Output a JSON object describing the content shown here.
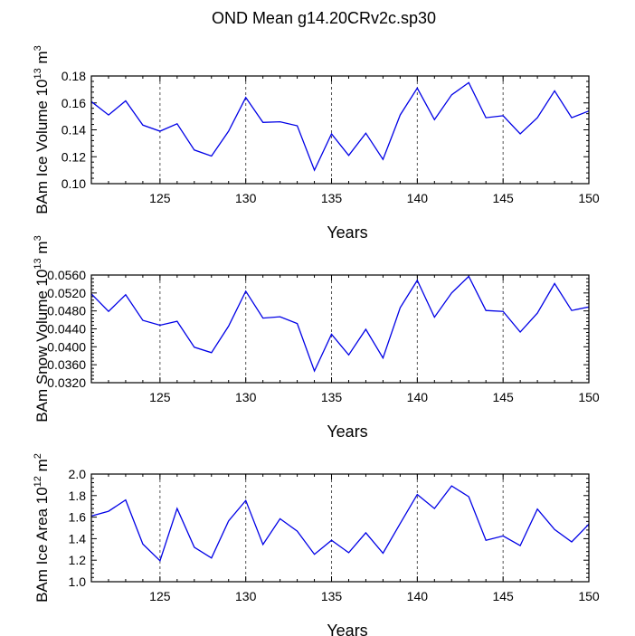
{
  "page_title": "OND Mean g14.20CRv2c.sp30",
  "colors": {
    "line": "#0000e6",
    "grid": "#555555",
    "axis": "#000000"
  },
  "chart_data": [
    {
      "type": "line",
      "ylabel": "BAm Ice Volume 10",
      "ylabel_exp": "13",
      "ylabel_unit": " m",
      "ylabel_unit_exp": "3",
      "xlabel": "Years",
      "xlim": [
        121,
        150
      ],
      "ylim": [
        0.1,
        0.18
      ],
      "yticks": [
        "0.10",
        "0.12",
        "0.14",
        "0.16",
        "0.18"
      ],
      "xticks": [
        "125",
        "130",
        "135",
        "140",
        "145",
        "150"
      ],
      "x": [
        121,
        122,
        123,
        124,
        125,
        126,
        127,
        128,
        129,
        130,
        131,
        132,
        133,
        134,
        135,
        136,
        137,
        138,
        139,
        140,
        141,
        142,
        143,
        144,
        145,
        146,
        147,
        148,
        149,
        150
      ],
      "values": [
        0.161,
        0.151,
        0.1615,
        0.1435,
        0.139,
        0.1445,
        0.125,
        0.1205,
        0.139,
        0.164,
        0.1455,
        0.146,
        0.143,
        0.11,
        0.137,
        0.121,
        0.1375,
        0.118,
        0.151,
        0.171,
        0.1475,
        0.166,
        0.175,
        0.149,
        0.1505,
        0.137,
        0.149,
        0.169,
        0.149,
        0.154
      ]
    },
    {
      "type": "line",
      "ylabel": "BAm Snow Volume 10",
      "ylabel_exp": "13",
      "ylabel_unit": " m",
      "ylabel_unit_exp": "3",
      "xlabel": "Years",
      "xlim": [
        121,
        150
      ],
      "ylim": [
        0.032,
        0.056
      ],
      "yticks": [
        "0.0320",
        "0.0360",
        "0.0400",
        "0.0440",
        "0.0480",
        "0.0520",
        "0.0560"
      ],
      "xticks": [
        "125",
        "130",
        "135",
        "140",
        "145",
        "150"
      ],
      "x": [
        121,
        122,
        123,
        124,
        125,
        126,
        127,
        128,
        129,
        130,
        131,
        132,
        133,
        134,
        135,
        136,
        137,
        138,
        139,
        140,
        141,
        142,
        143,
        144,
        145,
        146,
        147,
        148,
        149,
        150
      ],
      "values": [
        0.0518,
        0.0479,
        0.0516,
        0.0459,
        0.0448,
        0.0457,
        0.0399,
        0.0387,
        0.0446,
        0.0524,
        0.0464,
        0.0467,
        0.0452,
        0.0346,
        0.0428,
        0.0382,
        0.0439,
        0.0375,
        0.0487,
        0.0548,
        0.0466,
        0.052,
        0.0557,
        0.0481,
        0.0479,
        0.0433,
        0.0475,
        0.0541,
        0.0481,
        0.0489
      ]
    },
    {
      "type": "line",
      "ylabel": "BAm Ice Area 10",
      "ylabel_exp": "12",
      "ylabel_unit": " m",
      "ylabel_unit_exp": "2",
      "xlabel": "Years",
      "xlim": [
        121,
        150
      ],
      "ylim": [
        1.0,
        2.0
      ],
      "yticks": [
        "1.0",
        "1.2",
        "1.4",
        "1.6",
        "1.8",
        "2.0"
      ],
      "xticks": [
        "125",
        "130",
        "135",
        "140",
        "145",
        "150"
      ],
      "x": [
        121,
        122,
        123,
        124,
        125,
        126,
        127,
        128,
        129,
        130,
        131,
        132,
        133,
        134,
        135,
        136,
        137,
        138,
        139,
        140,
        141,
        142,
        143,
        144,
        145,
        146,
        147,
        148,
        149,
        150
      ],
      "values": [
        1.61,
        1.655,
        1.76,
        1.35,
        1.195,
        1.68,
        1.32,
        1.22,
        1.565,
        1.755,
        1.345,
        1.585,
        1.47,
        1.255,
        1.385,
        1.27,
        1.455,
        1.265,
        1.54,
        1.81,
        1.68,
        1.89,
        1.79,
        1.385,
        1.425,
        1.335,
        1.675,
        1.485,
        1.37,
        1.535
      ]
    }
  ]
}
